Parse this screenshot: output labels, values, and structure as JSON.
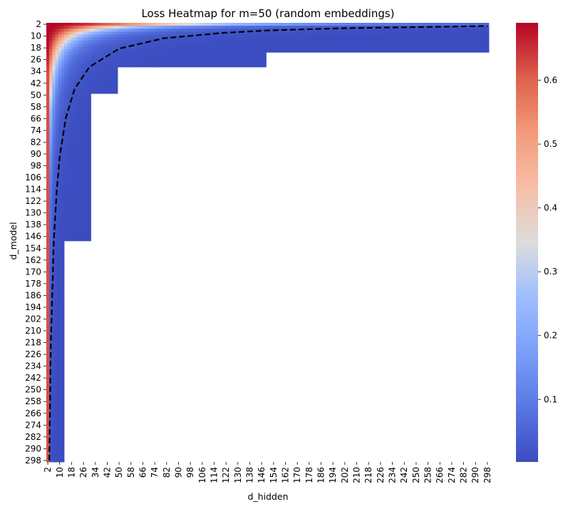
{
  "chart_data": {
    "type": "heatmap",
    "title": "Loss Heatmap for m=50 (random embeddings)",
    "xlabel": "d_hidden",
    "ylabel": "d_model",
    "x_tick_labels": [
      "2",
      "10",
      "18",
      "26",
      "34",
      "42",
      "50",
      "58",
      "66",
      "74",
      "82",
      "90",
      "98",
      "106",
      "114",
      "122",
      "130",
      "138",
      "146",
      "154",
      "162",
      "170",
      "178",
      "186",
      "194",
      "202",
      "210",
      "218",
      "226",
      "234",
      "242",
      "250",
      "258",
      "266",
      "274",
      "282",
      "290",
      "298"
    ],
    "y_tick_labels": [
      "2",
      "10",
      "18",
      "26",
      "34",
      "42",
      "50",
      "58",
      "66",
      "74",
      "82",
      "90",
      "98",
      "106",
      "114",
      "122",
      "130",
      "138",
      "146",
      "154",
      "162",
      "170",
      "178",
      "186",
      "194",
      "202",
      "210",
      "218",
      "226",
      "234",
      "242",
      "250",
      "258",
      "266",
      "274",
      "282",
      "290",
      "298"
    ],
    "x_range": [
      2,
      298
    ],
    "y_range": [
      2,
      298
    ],
    "step": 2,
    "colormap": "coolwarm",
    "colorbar_ticks": [
      0.1,
      0.2,
      0.3,
      0.4,
      0.5,
      0.6
    ],
    "colorbar_tick_labels": [
      "0.1",
      "0.2",
      "0.3",
      "0.4",
      "0.5",
      "0.6"
    ],
    "colorbar_range": [
      0.002,
      0.69
    ],
    "reference_curve": {
      "style": "black dashed",
      "description": "d_hidden ≈ 2·m·ln(m) / d_model",
      "points": [
        [
          3,
          298
        ],
        [
          4,
          220
        ],
        [
          6,
          150
        ],
        [
          8,
          115
        ],
        [
          10,
          92
        ],
        [
          14,
          66
        ],
        [
          20,
          46
        ],
        [
          30,
          31
        ],
        [
          50,
          18.5
        ],
        [
          80,
          11.5
        ],
        [
          120,
          7.8
        ],
        [
          150,
          6.2
        ],
        [
          200,
          4.7
        ],
        [
          298,
          3.2
        ]
      ]
    },
    "computed_blocks": [
      {
        "d_hidden": [
          2,
          298
        ],
        "d_model": [
          2,
          20
        ]
      },
      {
        "d_hidden": [
          2,
          148
        ],
        "d_model": [
          22,
          30
        ]
      },
      {
        "d_hidden": [
          2,
          48
        ],
        "d_model": [
          32,
          48
        ]
      },
      {
        "d_hidden": [
          2,
          30
        ],
        "d_model": [
          50,
          148
        ]
      },
      {
        "d_hidden": [
          2,
          12
        ],
        "d_model": [
          150,
          298
        ]
      }
    ],
    "missing_region_color": "#ffffff"
  }
}
